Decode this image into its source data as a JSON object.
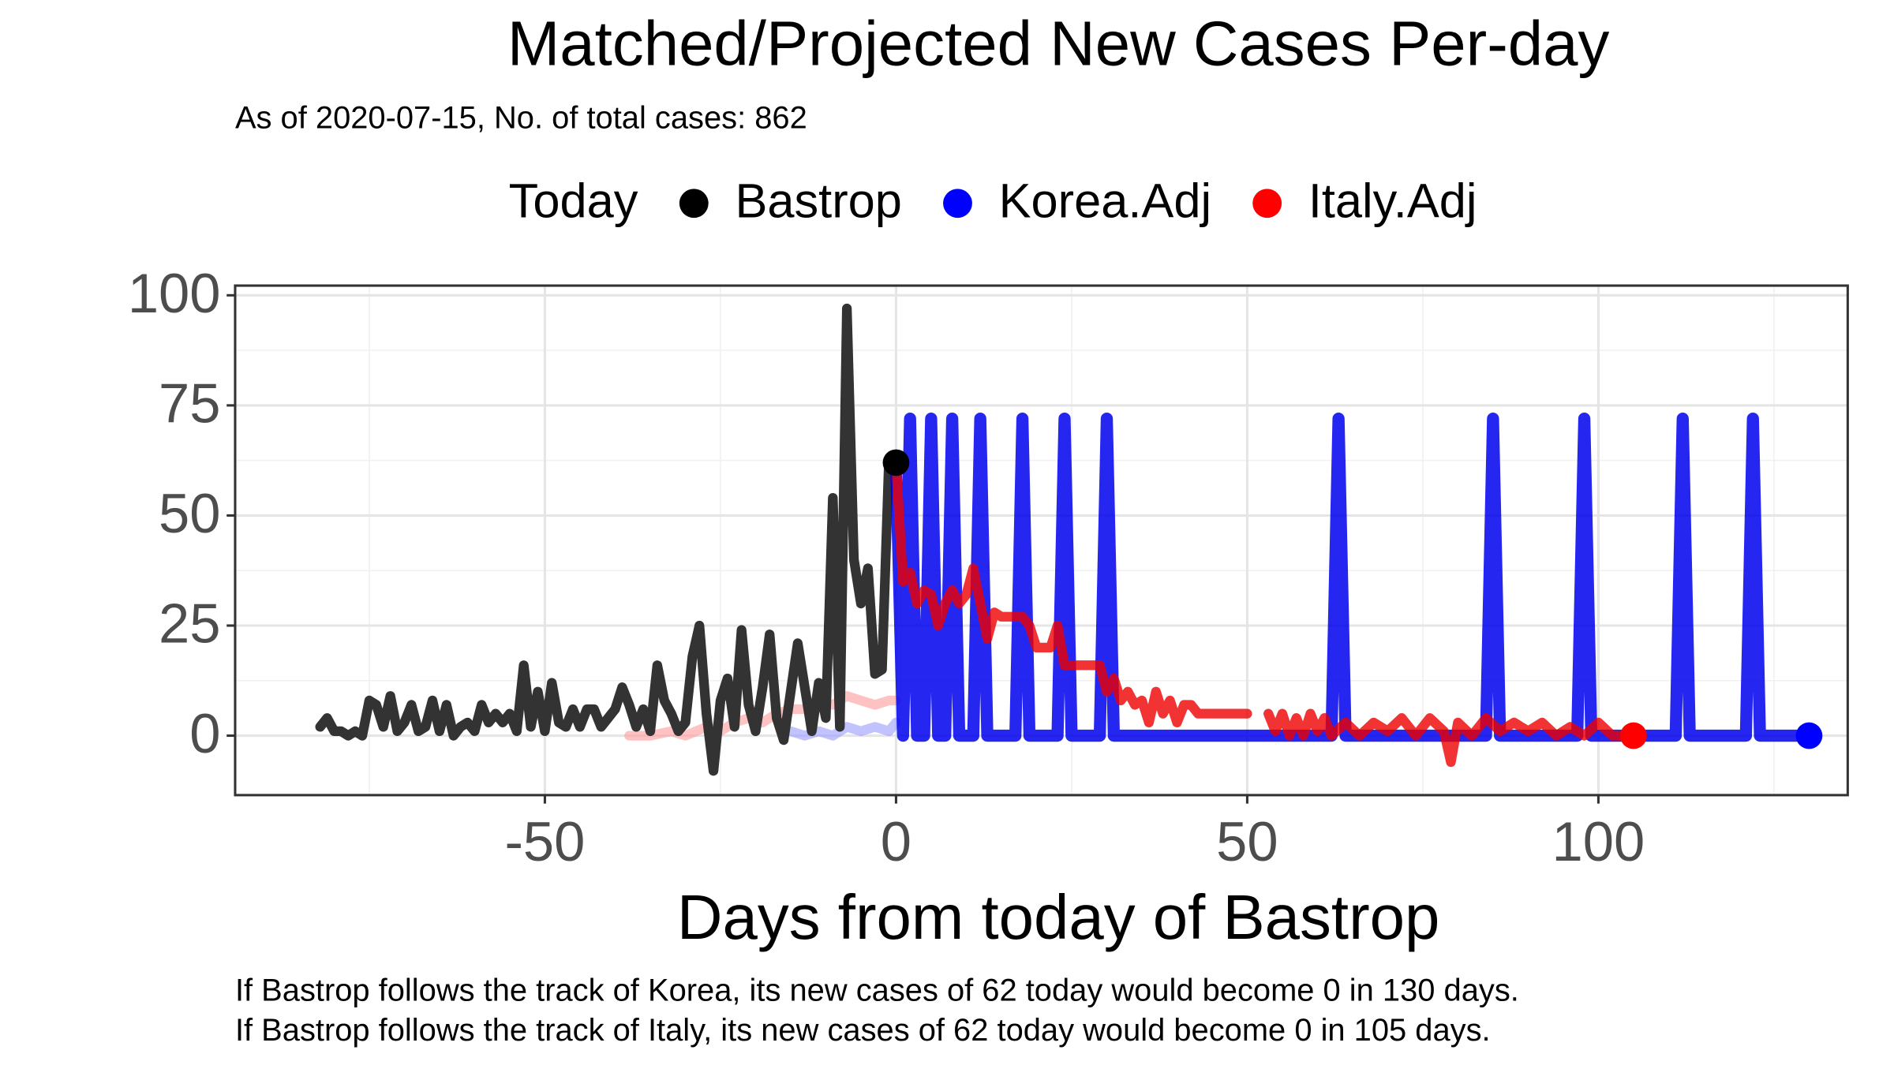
{
  "chart_data": {
    "type": "line",
    "title": "Matched/Projected New Cases Per-day",
    "subtitle": "As of 2020-07-15, No. of total cases: 862",
    "x_label": "Days from today of Bastrop",
    "captions": [
      "If Bastrop follows the track of Korea, its new cases of 62 today would become 0 in 130 days.",
      "If Bastrop follows the track of Italy, its new cases of 62 today would become 0 in 105 days."
    ],
    "legend_title": "Today",
    "xlim": [
      -94.1,
      135.5
    ],
    "ylim": [
      -13.5,
      102.2
    ],
    "xticks": [
      -50,
      0,
      50,
      100
    ],
    "yticks": [
      0,
      25,
      50,
      75,
      100
    ],
    "xminor": [
      -75,
      -25,
      25,
      75,
      125
    ],
    "yminor": [
      12.5,
      37.5,
      62.5,
      87.5
    ],
    "grid": true,
    "series": [
      {
        "color": "#ff9999",
        "opacity": 0.6,
        "width": 8,
        "x": [
          -38,
          -35,
          -32,
          -30,
          -27,
          -25,
          -23,
          -21,
          -19,
          -17,
          -15,
          -13,
          -11,
          -9,
          -7,
          -5,
          -3,
          -1,
          0
        ],
        "values": [
          0,
          0,
          1,
          0,
          2,
          1,
          3,
          4,
          3,
          5,
          6,
          6,
          8,
          7,
          9,
          8,
          7,
          8,
          8
        ]
      },
      {
        "color": "#9999ff",
        "opacity": 0.6,
        "width": 8,
        "x": [
          -15,
          -13,
          -11,
          -9,
          -7,
          -5,
          -3,
          -1,
          0
        ],
        "values": [
          1,
          0,
          1,
          0,
          2,
          1,
          2,
          1,
          3
        ]
      },
      {
        "color": "#333333",
        "opacity": 1,
        "width": 8,
        "x": [
          -82,
          -81,
          -80,
          -79,
          -78,
          -77,
          -76,
          -75,
          -74,
          -73,
          -72,
          -71,
          -70,
          -69,
          -68,
          -67,
          -66,
          -65,
          -64,
          -63,
          -62,
          -61,
          -60,
          -59,
          -58,
          -57,
          -56,
          -55,
          -54,
          -53,
          -52,
          -51,
          -50,
          -49,
          -48,
          -47,
          -46,
          -45,
          -44,
          -43,
          -42,
          -41,
          -40,
          -39,
          -38,
          -37,
          -36,
          -35,
          -34,
          -33,
          -32,
          -31,
          -30,
          -29,
          -28,
          -27,
          -26,
          -25,
          -24,
          -23,
          -22,
          -21,
          -20,
          -19,
          -18,
          -17,
          -16,
          -15,
          -14,
          -13,
          -12,
          -11,
          -10,
          -9,
          -8,
          -7,
          -6,
          -5,
          -4,
          -3,
          -2,
          -1,
          0
        ],
        "values": [
          2,
          4,
          1,
          1,
          0,
          1,
          0,
          8,
          7,
          2,
          9,
          1,
          3,
          7,
          1,
          2,
          8,
          1,
          7,
          0,
          2,
          3,
          1,
          7,
          3,
          5,
          3,
          5,
          1,
          16,
          2,
          10,
          1,
          12,
          3,
          2,
          6,
          2,
          6,
          6,
          2,
          4,
          6,
          11,
          7,
          2,
          6,
          1,
          16,
          8,
          5,
          1,
          3,
          18,
          25,
          5,
          -8,
          8,
          13,
          2,
          24,
          7,
          1,
          11,
          23,
          4,
          -1,
          10,
          21,
          11,
          1,
          12,
          4,
          54,
          2,
          97,
          40,
          30,
          38,
          14,
          15,
          63,
          62
        ]
      },
      {
        "color": "#0000ee",
        "opacity": 0.85,
        "width": 10,
        "x": [
          0,
          1,
          2,
          3,
          4,
          5,
          6,
          7,
          8,
          9,
          11,
          12,
          13,
          17,
          18,
          19,
          23,
          24,
          25,
          29,
          30,
          31,
          62,
          63,
          64,
          84,
          85,
          86,
          97,
          98,
          99,
          111,
          112,
          113,
          121,
          122,
          123,
          130
        ],
        "values": [
          62,
          0,
          72,
          0,
          0,
          72,
          0,
          0,
          72,
          0,
          0,
          72,
          0,
          0,
          72,
          0,
          0,
          72,
          0,
          0,
          72,
          0,
          0,
          72,
          0,
          0,
          72,
          0,
          0,
          72,
          0,
          0,
          72,
          0,
          0,
          72,
          0,
          0
        ]
      },
      {
        "color": "#ee0000",
        "opacity": 0.8,
        "width": 8,
        "x": [
          0,
          1,
          2,
          3,
          4,
          5,
          6,
          7,
          8,
          9,
          10,
          11,
          12,
          13,
          14,
          15,
          18,
          19,
          20,
          22,
          23,
          24,
          29,
          30,
          31,
          32,
          33,
          34,
          35,
          36,
          37,
          38,
          39,
          40,
          41,
          42,
          43,
          50,
          51,
          53,
          54,
          55,
          56,
          57,
          58,
          59,
          60,
          61,
          62,
          64,
          66,
          68,
          70,
          72,
          74,
          76,
          78,
          79,
          80,
          82,
          84,
          86,
          88,
          90,
          92,
          94,
          96,
          98,
          100,
          102,
          105
        ],
        "values": [
          62,
          35,
          37,
          30,
          33,
          32,
          25,
          30,
          33,
          30,
          32,
          38,
          30,
          22,
          28,
          27,
          27,
          25,
          20,
          20,
          25,
          16,
          16,
          10,
          13,
          8,
          10,
          7,
          8,
          3,
          10,
          5,
          8,
          3,
          7,
          7,
          5,
          5,
          null,
          5,
          1,
          5,
          0,
          4,
          0,
          5,
          1,
          4,
          0,
          3,
          0,
          3,
          1,
          4,
          0,
          4,
          1,
          -6,
          3,
          0,
          4,
          1,
          3,
          1,
          3,
          0,
          2,
          0,
          3,
          0,
          0
        ]
      }
    ],
    "today_points": {
      "names": [
        "Bastrop",
        "Korea.Adj",
        "Italy.Adj"
      ],
      "colors": [
        "#000000",
        "#0000ff",
        "#ff0000"
      ],
      "x": [
        0,
        130,
        105
      ],
      "y": [
        62,
        0,
        0
      ]
    }
  }
}
